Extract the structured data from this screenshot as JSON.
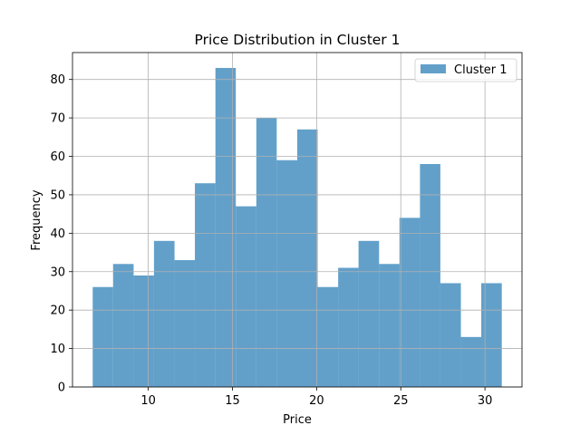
{
  "chart_data": {
    "type": "bar",
    "title": "Price Distribution in Cluster 1",
    "xlabel": "Price",
    "ylabel": "Frequency",
    "xlim": [
      5.5,
      32.2
    ],
    "ylim": [
      0,
      87
    ],
    "xticks": [
      10,
      15,
      20,
      25,
      30
    ],
    "yticks": [
      0,
      10,
      20,
      30,
      40,
      50,
      60,
      70,
      80
    ],
    "grid": true,
    "legend": {
      "position": "top-right",
      "entries": [
        "Cluster 1"
      ]
    },
    "colors": {
      "bars": "#1f77b4",
      "bar_alpha": 0.7
    },
    "bins": {
      "edges": [
        6.7,
        7.91,
        9.13,
        10.34,
        11.56,
        12.77,
        13.99,
        15.2,
        16.42,
        17.63,
        18.85,
        20.06,
        21.28,
        22.49,
        23.71,
        24.92,
        26.14,
        27.35,
        28.57,
        29.78,
        31.0
      ],
      "values": [
        26,
        32,
        29,
        38,
        33,
        53,
        83,
        47,
        70,
        59,
        67,
        26,
        31,
        38,
        32,
        44,
        58,
        27,
        13,
        27
      ]
    }
  }
}
